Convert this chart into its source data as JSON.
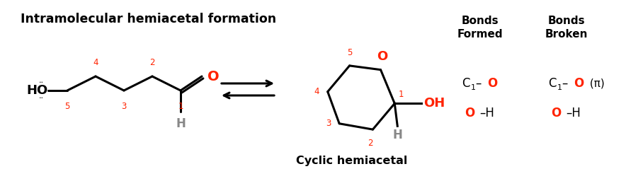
{
  "title": "Intramolecular hemiacetal formation",
  "title_fontsize": 12.5,
  "bg_color": "#ffffff",
  "black": "#000000",
  "red": "#ff2200",
  "gray": "#888888",
  "cyclic_label": "Cyclic hemiacetal",
  "bonds_formed_title": "Bonds\nFormed",
  "bonds_broken_title": "Bonds\nBroken",
  "figw": 8.84,
  "figh": 2.56,
  "dpi": 100
}
